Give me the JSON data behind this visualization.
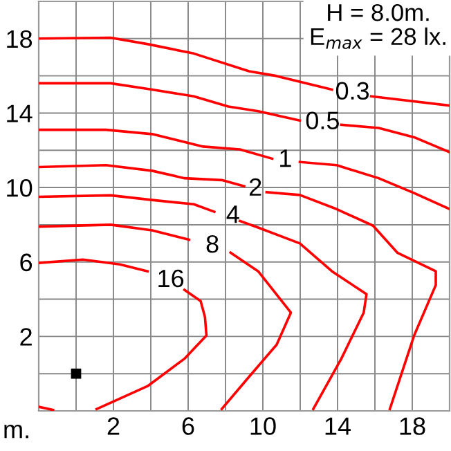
{
  "chart_data": {
    "type": "line",
    "xlabel": "m.",
    "annotations": [
      "H = 8.0m.",
      "E$_{max}$ = 28 lx."
    ],
    "series": [
      {
        "name": "0.3",
        "color": "#ff0000",
        "x": [
          -2,
          1.85,
          3.85,
          6.3,
          9.26,
          10.7,
          13.7,
          14.8,
          15.8,
          20
        ],
        "values": [
          18.0,
          18.05,
          17.7,
          17.2,
          16.25,
          16.0,
          15.26,
          null,
          14.9,
          14.4
        ]
      },
      {
        "name": "0.5",
        "color": "#ff0000",
        "x": [
          -2,
          1.85,
          4.07,
          6.3,
          8.15,
          9.75,
          11.98,
          13.2,
          14.2,
          16.2,
          18.1,
          20
        ],
        "values": [
          15.6,
          15.6,
          15.26,
          14.9,
          14.35,
          14.1,
          13.6,
          null,
          13.37,
          13.2,
          12.7,
          11.9
        ]
      },
      {
        "name": "1",
        "color": "#ff0000",
        "x": [
          -2,
          1.6,
          4.07,
          6.8,
          8.77,
          10.5,
          11.2,
          11.98,
          13.95,
          16.2,
          18.1,
          20
        ],
        "values": [
          13.1,
          13.1,
          12.87,
          12.2,
          12.05,
          11.55,
          null,
          11.37,
          11.2,
          10.5,
          9.7,
          8.84
        ]
      },
      {
        "name": "2",
        "color": "#ff0000",
        "x": [
          -2,
          1.6,
          4.07,
          5.8,
          7.8,
          9.0,
          9.6,
          10.2,
          11.98,
          13.95,
          15.9,
          17.2,
          19.26,
          19.26,
          18.1,
          16.8
        ],
        "values": [
          11.1,
          11.2,
          10.9,
          10.5,
          10.4,
          10.07,
          null,
          9.75,
          9.6,
          8.84,
          7.95,
          6.5,
          5.5,
          4.76,
          2.05,
          -1.9
        ]
      },
      {
        "name": "4",
        "color": "#ff0000",
        "x": [
          -2,
          1.85,
          4.07,
          6.3,
          7.4,
          8.4,
          8.77,
          9.75,
          11.98,
          13.7,
          15.55,
          15.4,
          14.2,
          12.7
        ],
        "values": [
          9.5,
          9.58,
          9.33,
          9.1,
          8.7,
          null,
          8.2,
          7.85,
          7.0,
          5.5,
          4.27,
          3.28,
          0.8,
          -1.9
        ]
      },
      {
        "name": "8",
        "color": "#ff0000",
        "x": [
          -2,
          1.85,
          4.07,
          6.05,
          7.3,
          8.27,
          9.75,
          11.5,
          10.74,
          9.26,
          7.8
        ],
        "values": [
          7.9,
          8.0,
          7.7,
          7.2,
          null,
          6.5,
          5.5,
          3.28,
          1.56,
          -0.17,
          -1.9
        ]
      },
      {
        "name": "16",
        "color": "#ff0000",
        "x": [
          -2,
          0.37,
          2.35,
          3.83,
          5.06,
          5.8,
          6.67,
          6.9,
          6.98,
          5.8,
          3.83,
          1.1
        ],
        "values": [
          5.95,
          6.13,
          5.87,
          5.5,
          null,
          4.5,
          3.9,
          3.04,
          2.05,
          0.8,
          -0.67,
          -1.9
        ]
      },
      {
        "color": "#ff0000",
        "x": [
          -2,
          -1.23
        ],
        "values": [
          -1.78,
          -1.95
        ]
      },
      {
        "type": "scatter",
        "color": "#000000",
        "marker": "square",
        "x": [
          0
        ],
        "values": [
          0
        ]
      }
    ],
    "xlim": [
      -2,
      20
    ],
    "ylim": [
      -2,
      20
    ],
    "xticks": [
      {
        "value": 0,
        "label": null
      },
      2,
      {
        "value": 4,
        "label": null
      },
      6,
      {
        "value": 8,
        "label": null
      },
      10,
      {
        "value": 12,
        "label": null
      },
      14,
      {
        "value": 16,
        "label": null
      },
      18
    ],
    "yticks": [
      {
        "value": 0,
        "label": null
      },
      2,
      {
        "value": 4,
        "label": null
      },
      6,
      {
        "value": 8,
        "label": null
      },
      10,
      {
        "value": 12,
        "label": null
      },
      14,
      {
        "value": 16,
        "label": null
      },
      18
    ],
    "grid": true,
    "marker": "none",
    "line_style": "solid"
  }
}
